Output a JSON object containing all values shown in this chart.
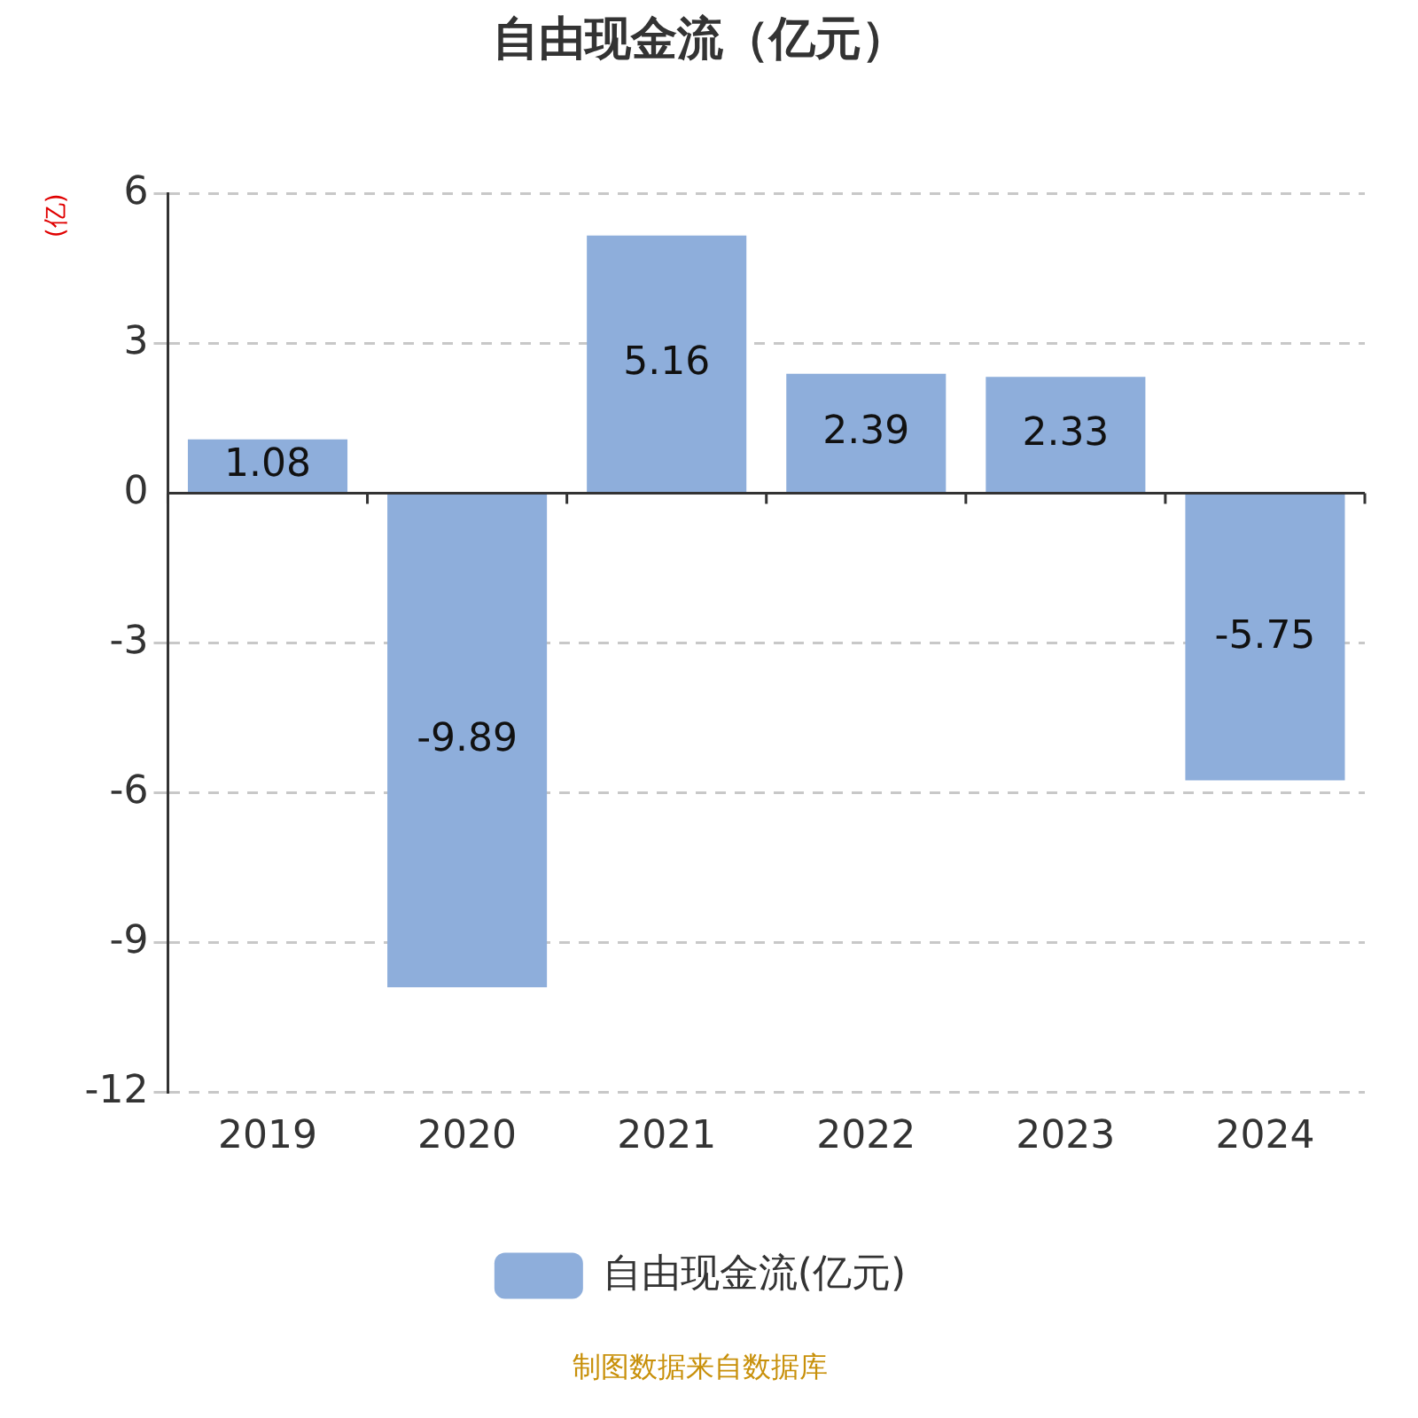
{
  "chart_data": {
    "type": "bar",
    "title": "自由现金流（亿元）",
    "ylabel": "(亿)",
    "categories": [
      "2019",
      "2020",
      "2021",
      "2022",
      "2023",
      "2024"
    ],
    "series": [
      {
        "name": "自由现金流(亿元)",
        "color": "#8eaedb",
        "values": [
          1.08,
          -9.89,
          5.16,
          2.39,
          2.33,
          -5.75
        ]
      }
    ],
    "ylim": [
      -12,
      6
    ],
    "yticks": [
      -12,
      -9,
      -6,
      -3,
      0,
      3,
      6
    ],
    "grid": "y",
    "legend": "bottom",
    "data_labels": true,
    "annotations": [
      "制图数据来自数据库"
    ]
  }
}
